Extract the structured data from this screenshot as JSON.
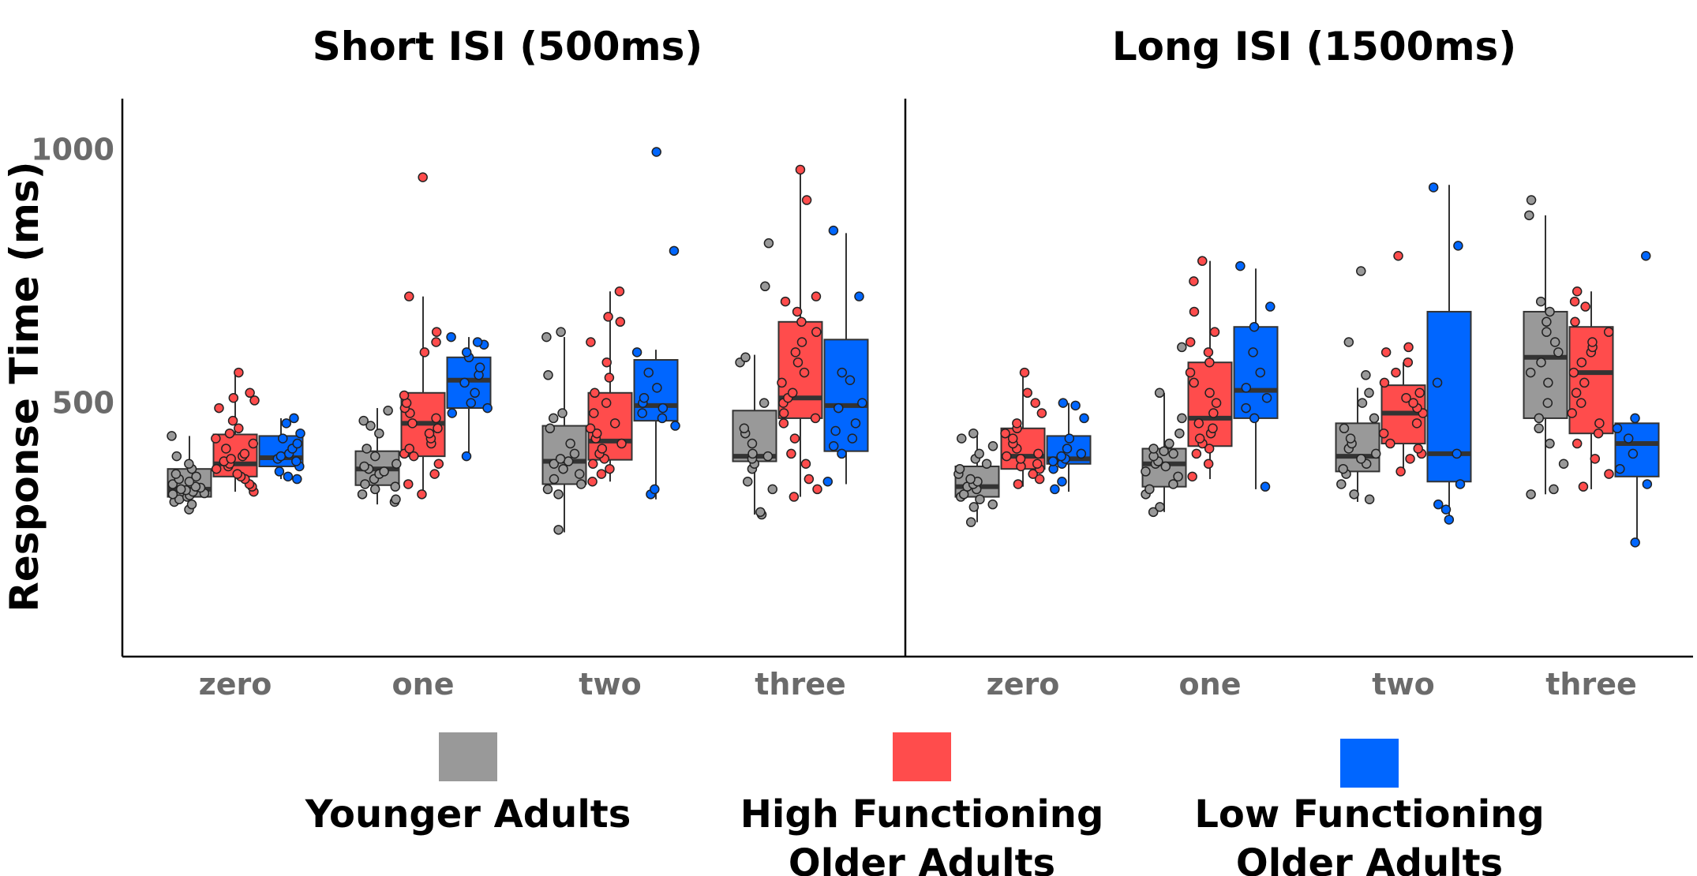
{
  "chart_data": {
    "type": "boxplot",
    "ylabel": "Response Time (ms)",
    "ylim": [
      0,
      1100
    ],
    "yticks": [
      500,
      1000
    ],
    "categories": [
      "zero",
      "one",
      "two",
      "three"
    ],
    "groups": [
      {
        "name": "Younger Adults",
        "color": "#999999"
      },
      {
        "name": "High Functioning Older Adults",
        "color": "#ff4c4c"
      },
      {
        "name": "Low Functioning Older Adults",
        "color": "#0066ff"
      }
    ],
    "legend": {
      "position": "bottom",
      "labels": [
        [
          "Younger Adults"
        ],
        [
          "High Functioning",
          "Older Adults"
        ],
        [
          "Low Functioning",
          "Older Adults"
        ]
      ]
    },
    "panels": [
      {
        "title": "Short ISI (500ms)",
        "boxes": [
          [
            {
              "q1": 315,
              "median": 330,
              "q3": 370,
              "whislo": 285,
              "whishi": 435,
              "points": [
                290,
                300,
                305,
                310,
                315,
                318,
                320,
                322,
                325,
                328,
                330,
                333,
                335,
                340,
                345,
                350,
                355,
                360,
                370,
                380,
                395,
                435
              ]
            },
            {
              "q1": 338,
              "median": 370,
              "q3": 405,
              "whislo": 300,
              "whishi": 490,
              "points": [
                305,
                310,
                320,
                330,
                335,
                340,
                350,
                360,
                365,
                370,
                375,
                380,
                395,
                410,
                440,
                455,
                465,
                485
              ]
            },
            {
              "q1": 340,
              "median": 385,
              "q3": 455,
              "whislo": 245,
              "whishi": 630,
              "points": [
                250,
                320,
                330,
                340,
                350,
                360,
                370,
                380,
                385,
                390,
                400,
                420,
                450,
                470,
                480,
                555,
                630,
                640
              ]
            },
            {
              "q1": 385,
              "median": 395,
              "q3": 485,
              "whislo": 280,
              "whishi": 595,
              "points": [
                280,
                285,
                330,
                345,
                370,
                380,
                390,
                395,
                400,
                420,
                440,
                450,
                500,
                580,
                590,
                730,
                815
              ]
            }
          ],
          [
            {
              "q1": 355,
              "median": 380,
              "q3": 438,
              "whislo": 325,
              "whishi": 560,
              "points": [
                325,
                335,
                340,
                350,
                355,
                360,
                370,
                375,
                380,
                385,
                390,
                395,
                400,
                410,
                420,
                430,
                440,
                450,
                465,
                490,
                505,
                510,
                520,
                560
              ]
            },
            {
              "q1": 395,
              "median": 460,
              "q3": 520,
              "whislo": 320,
              "whishi": 710,
              "points": [
                320,
                340,
                360,
                380,
                395,
                400,
                410,
                420,
                430,
                440,
                450,
                460,
                470,
                480,
                490,
                500,
                515,
                600,
                620,
                640,
                710,
                945
              ]
            },
            {
              "q1": 388,
              "median": 425,
              "q3": 520,
              "whislo": 345,
              "whishi": 720,
              "points": [
                345,
                360,
                370,
                380,
                390,
                400,
                410,
                420,
                430,
                440,
                450,
                460,
                480,
                500,
                520,
                550,
                580,
                620,
                660,
                670,
                720
              ]
            },
            {
              "q1": 470,
              "median": 510,
              "q3": 660,
              "whislo": 315,
              "whishi": 955,
              "points": [
                315,
                330,
                350,
                380,
                400,
                430,
                460,
                470,
                480,
                500,
                510,
                520,
                540,
                560,
                580,
                600,
                620,
                640,
                660,
                680,
                700,
                710,
                900,
                960
              ]
            }
          ],
          [
            {
              "q1": 375,
              "median": 392,
              "q3": 435,
              "whislo": 350,
              "whishi": 470,
              "points": [
                350,
                355,
                365,
                375,
                385,
                390,
                395,
                400,
                410,
                420,
                430,
                440,
                460,
                470
              ]
            },
            {
              "q1": 490,
              "median": 545,
              "q3": 590,
              "whislo": 395,
              "whishi": 630,
              "points": [
                395,
                480,
                490,
                500,
                520,
                540,
                555,
                570,
                590,
                600,
                615,
                620,
                630
              ]
            },
            {
              "q1": 465,
              "median": 495,
              "q3": 585,
              "whislo": 310,
              "whishi": 605,
              "points": [
                320,
                330,
                455,
                470,
                480,
                490,
                500,
                510,
                530,
                560,
                600,
                800,
                995
              ]
            },
            {
              "q1": 405,
              "median": 495,
              "q3": 625,
              "whislo": 340,
              "whishi": 835,
              "points": [
                345,
                400,
                415,
                430,
                445,
                460,
                490,
                500,
                545,
                560,
                710,
                840
              ]
            }
          ]
        ]
      },
      {
        "title": "Long ISI (1500ms)",
        "boxes": [
          [
            {
              "q1": 315,
              "median": 335,
              "q3": 375,
              "whislo": 265,
              "whishi": 440,
              "points": [
                265,
                295,
                300,
                310,
                315,
                320,
                330,
                335,
                340,
                345,
                350,
                360,
                370,
                380,
                390,
                400,
                415,
                430,
                440
              ]
            },
            {
              "q1": 335,
              "median": 380,
              "q3": 410,
              "whislo": 285,
              "whishi": 520,
              "points": [
                285,
                295,
                320,
                330,
                340,
                355,
                365,
                375,
                380,
                385,
                395,
                400,
                405,
                410,
                420,
                440,
                470,
                520,
                610
              ]
            },
            {
              "q1": 365,
              "median": 395,
              "q3": 460,
              "whislo": 305,
              "whishi": 530,
              "points": [
                310,
                320,
                340,
                360,
                370,
                380,
                390,
                400,
                410,
                420,
                430,
                450,
                470,
                500,
                520,
                555,
                620,
                760
              ]
            },
            {
              "q1": 470,
              "median": 590,
              "q3": 680,
              "whislo": 320,
              "whishi": 870,
              "points": [
                320,
                330,
                380,
                420,
                450,
                470,
                500,
                540,
                560,
                580,
                600,
                620,
                640,
                660,
                680,
                700,
                870,
                900
              ]
            }
          ],
          [
            {
              "q1": 370,
              "median": 395,
              "q3": 450,
              "whislo": 335,
              "whishi": 565,
              "points": [
                340,
                350,
                360,
                370,
                375,
                380,
                390,
                395,
                400,
                410,
                420,
                430,
                440,
                450,
                460,
                480,
                500,
                520,
                560
              ]
            },
            {
              "q1": 415,
              "median": 470,
              "q3": 580,
              "whislo": 350,
              "whishi": 780,
              "points": [
                355,
                380,
                400,
                410,
                420,
                430,
                440,
                450,
                460,
                480,
                500,
                520,
                540,
                560,
                580,
                600,
                620,
                640,
                680,
                740,
                780
              ]
            },
            {
              "q1": 420,
              "median": 480,
              "q3": 535,
              "whislo": 360,
              "whishi": 580,
              "points": [
                365,
                390,
                400,
                410,
                420,
                440,
                460,
                480,
                490,
                500,
                510,
                520,
                540,
                560,
                580,
                600,
                610,
                790
              ]
            },
            {
              "q1": 440,
              "median": 560,
              "q3": 650,
              "whislo": 330,
              "whishi": 720,
              "points": [
                335,
                360,
                390,
                420,
                440,
                460,
                480,
                500,
                520,
                540,
                560,
                580,
                600,
                610,
                620,
                640,
                660,
                690,
                700,
                720
              ]
            }
          ],
          [
            {
              "q1": 380,
              "median": 390,
              "q3": 435,
              "whislo": 325,
              "whishi": 500,
              "points": [
                330,
                345,
                370,
                380,
                385,
                390,
                395,
                400,
                410,
                430,
                470,
                495,
                500
              ]
            },
            {
              "q1": 470,
              "median": 525,
              "q3": 650,
              "whislo": 330,
              "whishi": 765,
              "points": [
                335,
                470,
                490,
                510,
                530,
                560,
                600,
                650,
                690,
                770
              ]
            },
            {
              "q1": 345,
              "median": 400,
              "q3": 680,
              "whislo": 275,
              "whishi": 930,
              "points": [
                270,
                290,
                300,
                340,
                400,
                540,
                810,
                925
              ]
            },
            {
              "q1": 355,
              "median": 420,
              "q3": 460,
              "whislo": 230,
              "whishi": 465,
              "points": [
                225,
                340,
                370,
                400,
                430,
                450,
                470,
                790
              ]
            }
          ]
        ]
      }
    ]
  }
}
